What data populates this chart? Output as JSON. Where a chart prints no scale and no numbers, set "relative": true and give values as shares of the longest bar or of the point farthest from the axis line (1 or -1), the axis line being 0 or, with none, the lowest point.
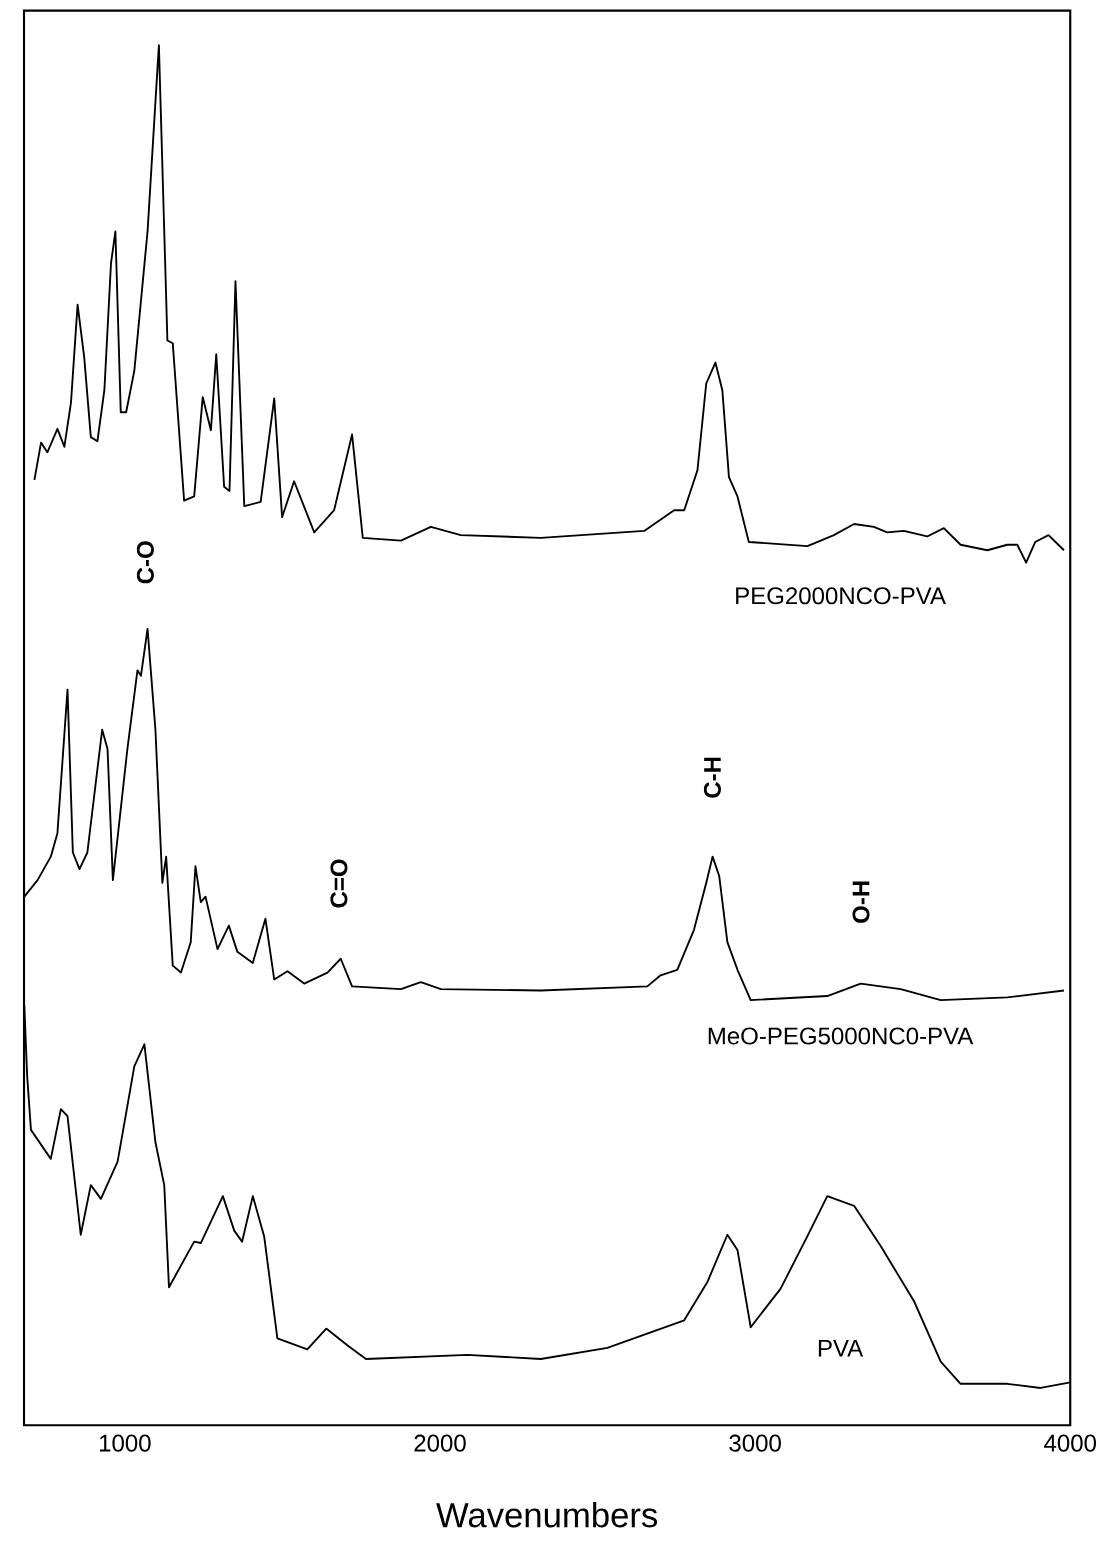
{
  "chart_data": {
    "type": "line",
    "relative": true,
    "xlabel": "Wavenumbers",
    "xlim": [
      680,
      4000
    ],
    "xticks": [
      1000,
      2000,
      3000,
      4000
    ],
    "tick_labels": "x",
    "marker": "none",
    "line_style": "solid",
    "annotations": [
      "C-O",
      "C=O",
      "C-H",
      "O-H"
    ],
    "series": [
      {
        "name": "PEG2000NCO-PVA",
        "color": "#000000",
        "x": [
          713,
          734,
          754,
          786,
          808,
          829,
          850,
          871,
          892,
          913,
          935,
          956,
          970,
          987,
          1004,
          1030,
          1072,
          1108,
          1135,
          1152,
          1188,
          1220,
          1247,
          1273,
          1290,
          1315,
          1332,
          1351,
          1379,
          1431,
          1474,
          1499,
          1537,
          1601,
          1664,
          1721,
          1755,
          1876,
          1971,
          2066,
          2320,
          2648,
          2743,
          2775,
          2817,
          2845,
          2874,
          2896,
          2917,
          2944,
          2980,
          3166,
          3250,
          3314,
          3377,
          3419,
          3472,
          3546,
          3599,
          3652,
          3737,
          3800,
          3832,
          3860,
          3889,
          3931,
          3980
        ],
        "values": [
          0.685,
          0.712,
          0.705,
          0.722,
          0.709,
          0.741,
          0.812,
          0.774,
          0.716,
          0.713,
          0.75,
          0.842,
          0.865,
          0.734,
          0.734,
          0.764,
          0.865,
          1.0,
          0.786,
          0.784,
          0.67,
          0.673,
          0.745,
          0.721,
          0.776,
          0.68,
          0.677,
          0.829,
          0.666,
          0.669,
          0.744,
          0.658,
          0.684,
          0.647,
          0.663,
          0.718,
          0.643,
          0.641,
          0.651,
          0.645,
          0.643,
          0.648,
          0.663,
          0.663,
          0.692,
          0.755,
          0.77,
          0.75,
          0.687,
          0.673,
          0.64,
          0.637,
          0.645,
          0.653,
          0.651,
          0.647,
          0.648,
          0.644,
          0.65,
          0.638,
          0.634,
          0.638,
          0.638,
          0.625,
          0.64,
          0.645,
          0.634
        ]
      },
      {
        "name": "MeO-PEG5000NC0-PVA",
        "color": "#000000",
        "x": [
          681,
          723,
          765,
          786,
          818,
          835,
          856,
          881,
          928,
          945,
          962,
          1008,
          1040,
          1051,
          1072,
          1097,
          1119,
          1131,
          1152,
          1178,
          1209,
          1224,
          1241,
          1256,
          1294,
          1330,
          1357,
          1406,
          1446,
          1474,
          1516,
          1569,
          1643,
          1685,
          1721,
          1876,
          1939,
          2003,
          2320,
          2658,
          2700,
          2753,
          2806,
          2845,
          2865,
          2886,
          2912,
          2944,
          2986,
          3229,
          3335,
          3462,
          3589,
          3800,
          3980
        ],
        "values": [
          0.383,
          0.395,
          0.412,
          0.429,
          0.533,
          0.415,
          0.403,
          0.415,
          0.504,
          0.49,
          0.395,
          0.49,
          0.547,
          0.543,
          0.577,
          0.504,
          0.393,
          0.412,
          0.333,
          0.328,
          0.35,
          0.405,
          0.379,
          0.383,
          0.345,
          0.362,
          0.343,
          0.335,
          0.367,
          0.323,
          0.329,
          0.32,
          0.328,
          0.338,
          0.318,
          0.316,
          0.321,
          0.316,
          0.315,
          0.318,
          0.326,
          0.33,
          0.359,
          0.393,
          0.412,
          0.398,
          0.35,
          0.33,
          0.308,
          0.311,
          0.32,
          0.316,
          0.308,
          0.31,
          0.315
        ]
      },
      {
        "name": "PVA",
        "color": "#000000",
        "x": [
          681,
          690,
          702,
          765,
          797,
          818,
          860,
          892,
          924,
          977,
          1030,
          1062,
          1097,
          1125,
          1140,
          1220,
          1241,
          1311,
          1347,
          1372,
          1406,
          1442,
          1484,
          1579,
          1639,
          1706,
          1765,
          2087,
          2320,
          2531,
          2775,
          2849,
          2912,
          2944,
          2986,
          3081,
          3166,
          3229,
          3314,
          3398,
          3504,
          3589,
          3652,
          3800,
          3906,
          4000
        ],
        "values": [
          0.304,
          0.253,
          0.214,
          0.193,
          0.229,
          0.224,
          0.138,
          0.174,
          0.164,
          0.191,
          0.26,
          0.276,
          0.205,
          0.174,
          0.1,
          0.133,
          0.132,
          0.166,
          0.141,
          0.133,
          0.166,
          0.137,
          0.063,
          0.055,
          0.07,
          0.058,
          0.048,
          0.051,
          0.048,
          0.056,
          0.076,
          0.104,
          0.138,
          0.127,
          0.071,
          0.099,
          0.137,
          0.166,
          0.159,
          0.13,
          0.09,
          0.046,
          0.03,
          0.03,
          0.027,
          0.031
        ]
      }
    ]
  }
}
